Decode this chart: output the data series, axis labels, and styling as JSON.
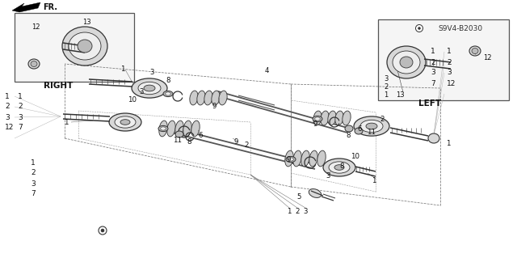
{
  "bg_color": "#ffffff",
  "label_LEFT": "LEFT",
  "label_RIGHT": "RIGHT",
  "label_FR": "FR.",
  "code": "S9V4-B2030",
  "figsize": [
    6.4,
    3.19
  ],
  "dpi": 100,
  "lc": "#333333",
  "shaft_color": "#555555",
  "part_fill": "#d8d8d8",
  "part_fill2": "#eeeeee",
  "part_fill3": "#bbbbbb",
  "boot_fill": "#cccccc",
  "box_fill": "#f5f5f5"
}
